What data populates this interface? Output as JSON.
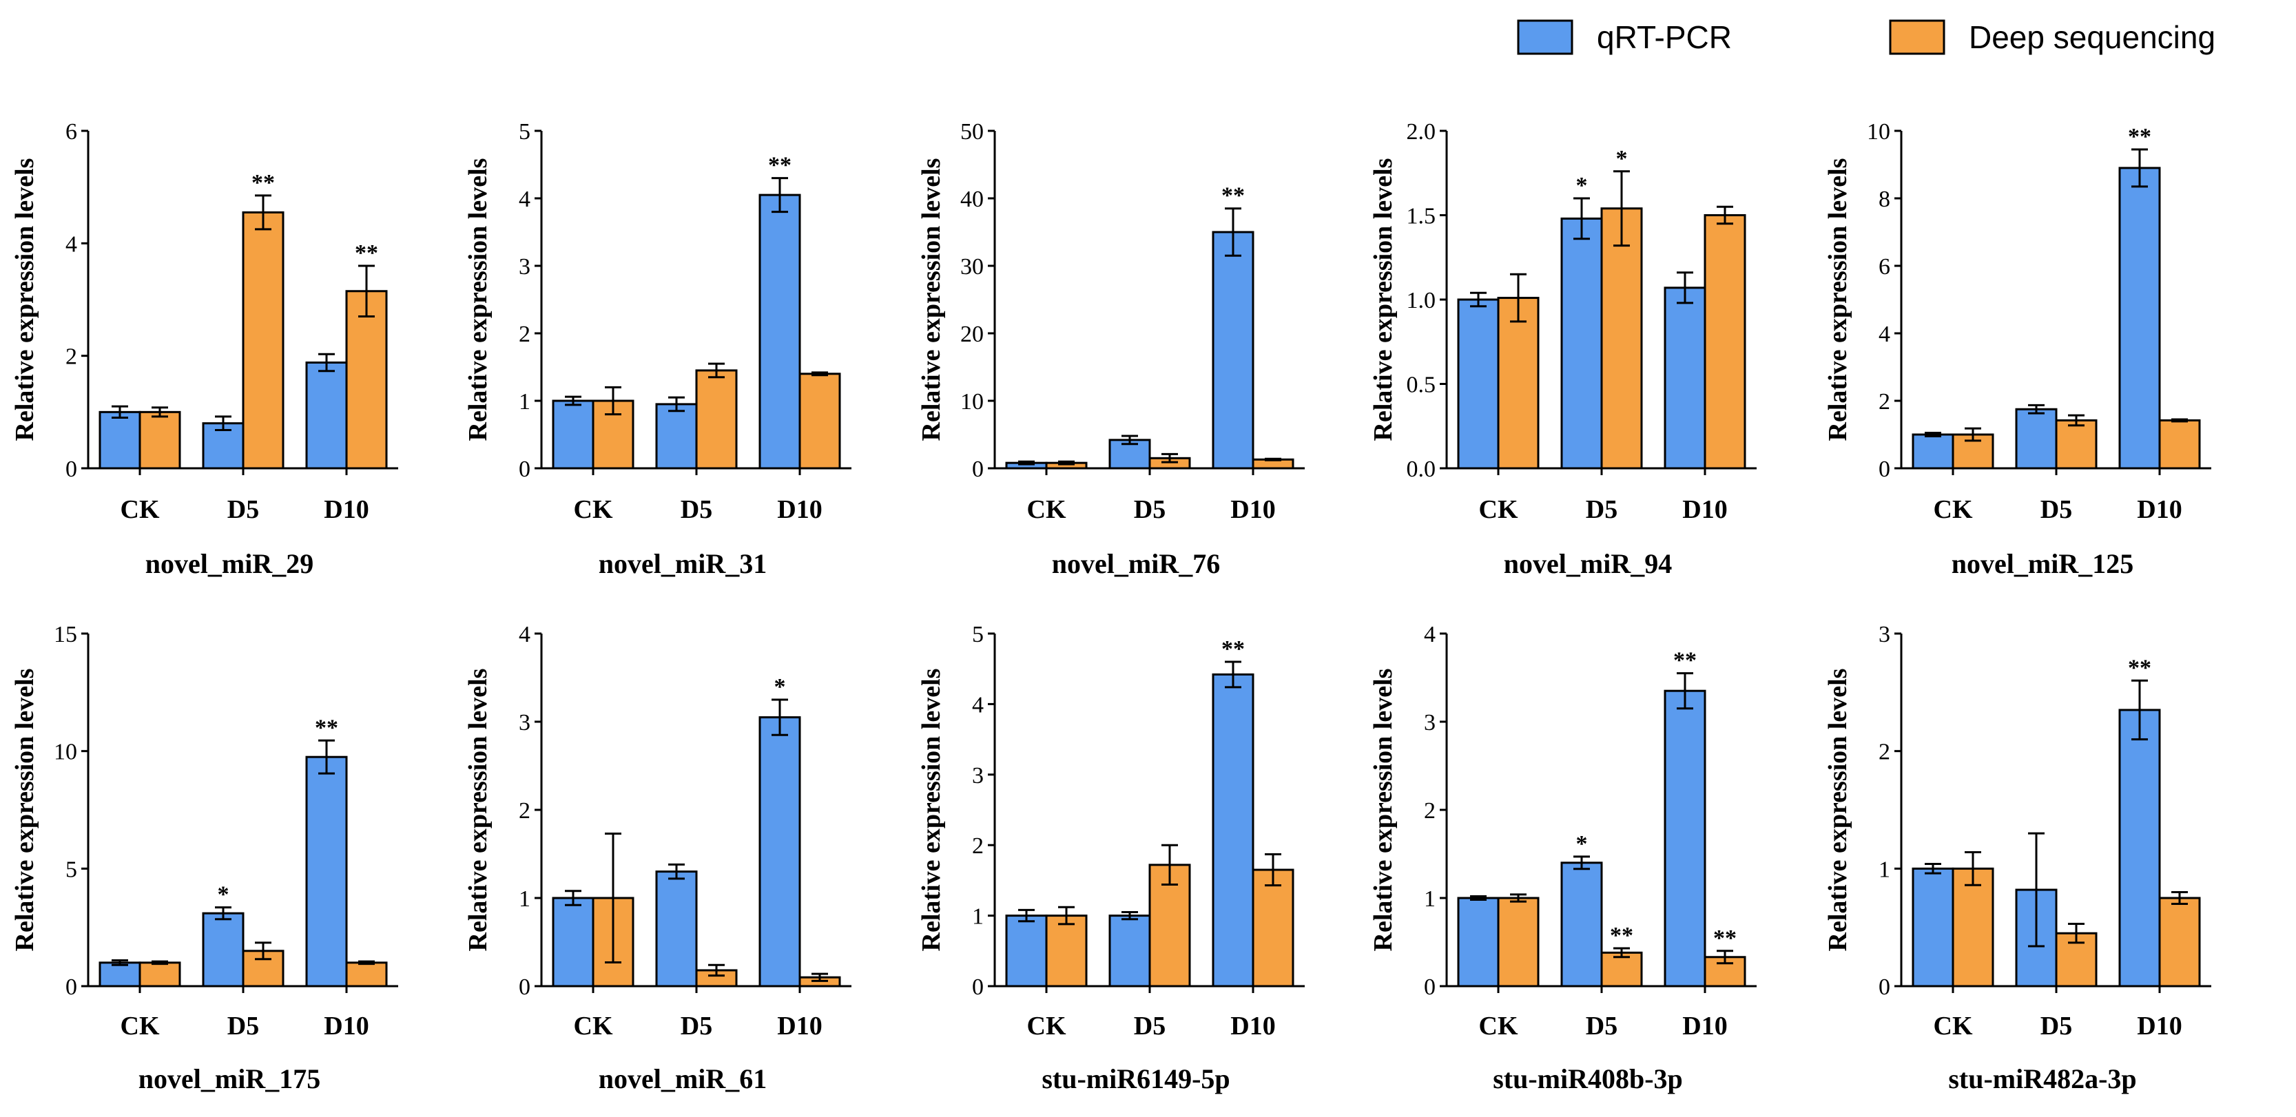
{
  "legend": {
    "items": [
      {
        "name": "qRT-PCR",
        "color": "#5B9BEE"
      },
      {
        "name": "Deep sequencing",
        "color": "#F5A142"
      }
    ]
  },
  "chart_data": [
    {
      "type": "bar",
      "title": "novel_miR_29",
      "xlabel": "novel_miR_29",
      "ylabel": "Relative expression levels",
      "categories": [
        "CK",
        "D5",
        "D10"
      ],
      "ylim": [
        0,
        6
      ],
      "yticks": [
        0,
        2,
        4,
        6
      ],
      "series": [
        {
          "name": "qRT-PCR",
          "values": [
            1.0,
            0.8,
            1.88
          ],
          "errors": [
            0.1,
            0.12,
            0.15
          ],
          "sig": [
            "",
            "",
            ""
          ]
        },
        {
          "name": "Deep sequencing",
          "values": [
            1.0,
            4.55,
            3.15
          ],
          "errors": [
            0.08,
            0.3,
            0.45
          ],
          "sig": [
            "",
            "**",
            "**"
          ]
        }
      ]
    },
    {
      "type": "bar",
      "title": "novel_miR_31",
      "xlabel": "novel_miR_31",
      "ylabel": "Relative expression levels",
      "categories": [
        "CK",
        "D5",
        "D10"
      ],
      "ylim": [
        0,
        5
      ],
      "yticks": [
        0,
        1,
        2,
        3,
        4,
        5
      ],
      "series": [
        {
          "name": "qRT-PCR",
          "values": [
            1.0,
            0.95,
            4.05
          ],
          "errors": [
            0.06,
            0.1,
            0.25
          ],
          "sig": [
            "",
            "",
            "**"
          ]
        },
        {
          "name": "Deep sequencing",
          "values": [
            1.0,
            1.45,
            1.4
          ],
          "errors": [
            0.2,
            0.1,
            0.02
          ],
          "sig": [
            "",
            "",
            ""
          ]
        }
      ]
    },
    {
      "type": "bar",
      "title": "novel_miR_76",
      "xlabel": "novel_miR_76",
      "ylabel": "Relative expression levels",
      "categories": [
        "CK",
        "D5",
        "D10"
      ],
      "ylim": [
        0,
        50
      ],
      "yticks": [
        0,
        10,
        20,
        30,
        40,
        50
      ],
      "series": [
        {
          "name": "qRT-PCR",
          "values": [
            0.8,
            4.2,
            35.0
          ],
          "errors": [
            0.2,
            0.6,
            3.5
          ],
          "sig": [
            "",
            "",
            "**"
          ]
        },
        {
          "name": "Deep sequencing",
          "values": [
            0.8,
            1.5,
            1.3
          ],
          "errors": [
            0.2,
            0.6,
            0.1
          ],
          "sig": [
            "",
            "",
            ""
          ]
        }
      ]
    },
    {
      "type": "bar",
      "title": "novel_miR_94",
      "xlabel": "novel_miR_94",
      "ylabel": "Relative expression levels",
      "categories": [
        "CK",
        "D5",
        "D10"
      ],
      "ylim": [
        0,
        2.0
      ],
      "yticks": [
        "0.0",
        "0.5",
        "1.0",
        "1.5",
        "2.0"
      ],
      "series": [
        {
          "name": "qRT-PCR",
          "values": [
            1.0,
            1.48,
            1.07
          ],
          "errors": [
            0.04,
            0.12,
            0.09
          ],
          "sig": [
            "",
            "*",
            ""
          ]
        },
        {
          "name": "Deep sequencing",
          "values": [
            1.01,
            1.54,
            1.5
          ],
          "errors": [
            0.14,
            0.22,
            0.05
          ],
          "sig": [
            "",
            "*",
            ""
          ]
        }
      ]
    },
    {
      "type": "bar",
      "title": "novel_miR_125",
      "xlabel": "novel_miR_125",
      "ylabel": "Relative expression levels",
      "categories": [
        "CK",
        "D5",
        "D10"
      ],
      "ylim": [
        0,
        10
      ],
      "yticks": [
        0,
        2,
        4,
        6,
        8,
        10
      ],
      "series": [
        {
          "name": "qRT-PCR",
          "values": [
            1.0,
            1.75,
            8.9
          ],
          "errors": [
            0.05,
            0.12,
            0.55
          ],
          "sig": [
            "",
            "",
            "**"
          ]
        },
        {
          "name": "Deep sequencing",
          "values": [
            1.0,
            1.42,
            1.42
          ],
          "errors": [
            0.18,
            0.15,
            0.03
          ],
          "sig": [
            "",
            "",
            ""
          ]
        }
      ]
    },
    {
      "type": "bar",
      "title": "novel_miR_175",
      "xlabel": "novel_miR_175",
      "ylabel": "Relative expression levels",
      "categories": [
        "CK",
        "D5",
        "D10"
      ],
      "ylim": [
        0,
        15
      ],
      "yticks": [
        0,
        5,
        10,
        15
      ],
      "series": [
        {
          "name": "qRT-PCR",
          "values": [
            1.0,
            3.1,
            9.75
          ],
          "errors": [
            0.1,
            0.25,
            0.7
          ],
          "sig": [
            "",
            "*",
            "**"
          ]
        },
        {
          "name": "Deep sequencing",
          "values": [
            1.0,
            1.5,
            1.0
          ],
          "errors": [
            0.05,
            0.35,
            0.05
          ],
          "sig": [
            "",
            "",
            ""
          ]
        }
      ]
    },
    {
      "type": "bar",
      "title": "novel_miR_61",
      "xlabel": "novel_miR_61",
      "ylabel": "Relative expression levels",
      "categories": [
        "CK",
        "D5",
        "D10"
      ],
      "ylim": [
        0,
        4
      ],
      "yticks": [
        0,
        1,
        2,
        3,
        4
      ],
      "series": [
        {
          "name": "qRT-PCR",
          "values": [
            1.0,
            1.3,
            3.05
          ],
          "errors": [
            0.08,
            0.08,
            0.2
          ],
          "sig": [
            "",
            "",
            "*"
          ]
        },
        {
          "name": "Deep sequencing",
          "values": [
            1.0,
            0.18,
            0.1
          ],
          "errors": [
            0.73,
            0.06,
            0.04
          ],
          "sig": [
            "",
            "",
            ""
          ]
        }
      ]
    },
    {
      "type": "bar",
      "title": "stu-miR6149-5p",
      "xlabel": "stu-miR6149-5p",
      "ylabel": "Relative expression levels",
      "categories": [
        "CK",
        "D5",
        "D10"
      ],
      "ylim": [
        0,
        5
      ],
      "yticks": [
        0,
        1,
        2,
        3,
        4,
        5
      ],
      "series": [
        {
          "name": "qRT-PCR",
          "values": [
            1.0,
            1.0,
            4.42
          ],
          "errors": [
            0.08,
            0.05,
            0.18
          ],
          "sig": [
            "",
            "",
            "**"
          ]
        },
        {
          "name": "Deep sequencing",
          "values": [
            1.0,
            1.72,
            1.65
          ],
          "errors": [
            0.12,
            0.28,
            0.22
          ],
          "sig": [
            "",
            "",
            ""
          ]
        }
      ]
    },
    {
      "type": "bar",
      "title": "stu-miR408b-3p",
      "xlabel": "stu-miR408b-3p",
      "ylabel": "Relative expression levels",
      "categories": [
        "CK",
        "D5",
        "D10"
      ],
      "ylim": [
        0,
        4
      ],
      "yticks": [
        0,
        1,
        2,
        3,
        4
      ],
      "series": [
        {
          "name": "qRT-PCR",
          "values": [
            1.0,
            1.4,
            3.35
          ],
          "errors": [
            0.02,
            0.07,
            0.2
          ],
          "sig": [
            "",
            "*",
            "**"
          ]
        },
        {
          "name": "Deep sequencing",
          "values": [
            1.0,
            0.38,
            0.33
          ],
          "errors": [
            0.04,
            0.05,
            0.07
          ],
          "sig": [
            "",
            "**",
            "**"
          ]
        }
      ]
    },
    {
      "type": "bar",
      "title": "stu-miR482a-3p",
      "xlabel": "stu-miR482a-3p",
      "ylabel": "Relative expression levels",
      "categories": [
        "CK",
        "D5",
        "D10"
      ],
      "ylim": [
        0,
        3
      ],
      "yticks": [
        0,
        1,
        2,
        3
      ],
      "series": [
        {
          "name": "qRT-PCR",
          "values": [
            1.0,
            0.82,
            2.35
          ],
          "errors": [
            0.04,
            0.48,
            0.25
          ],
          "sig": [
            "",
            "",
            "**"
          ]
        },
        {
          "name": "Deep sequencing",
          "values": [
            1.0,
            0.45,
            0.75
          ],
          "errors": [
            0.14,
            0.08,
            0.05
          ],
          "sig": [
            "",
            "",
            ""
          ]
        }
      ]
    }
  ]
}
